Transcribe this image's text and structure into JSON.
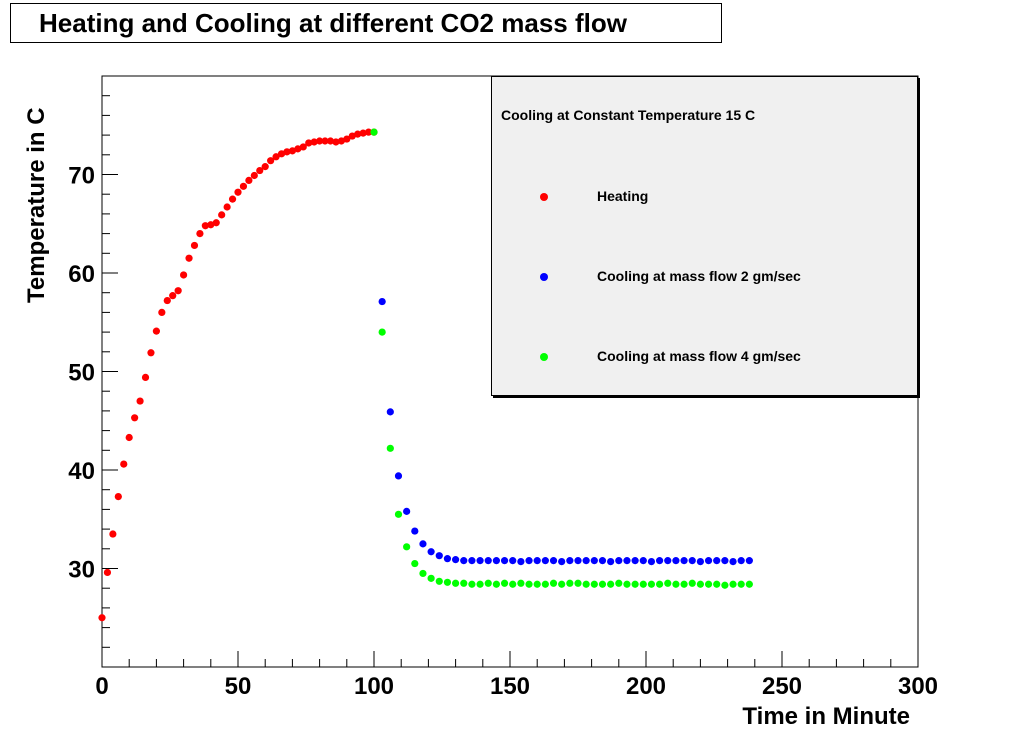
{
  "chart_data": {
    "type": "scatter",
    "title": "Heating and Cooling at different CO2 mass flow",
    "xlabel": "Time in Minute",
    "ylabel": "Temperature in C",
    "xlim": [
      0,
      300
    ],
    "ylim": [
      20,
      80
    ],
    "x_ticks": [
      0,
      50,
      100,
      150,
      200,
      250,
      300
    ],
    "y_ticks": [
      30,
      40,
      50,
      60,
      70
    ],
    "grid": false,
    "legend": {
      "header": "Cooling at Constant Temperature 15 C",
      "placement": "top-right"
    },
    "series": [
      {
        "name": "Heating",
        "color": "#ff0000",
        "x": [
          0,
          2,
          4,
          6,
          8,
          10,
          12,
          14,
          16,
          18,
          20,
          22,
          24,
          26,
          28,
          30,
          32,
          34,
          36,
          38,
          40,
          42,
          44,
          46,
          48,
          50,
          52,
          54,
          56,
          58,
          60,
          62,
          64,
          66,
          68,
          70,
          72,
          74,
          76,
          78,
          80,
          82,
          84,
          86,
          88,
          90,
          92,
          94,
          96,
          98,
          100
        ],
        "y": [
          25,
          29.6,
          33.5,
          37.3,
          40.6,
          43.3,
          45.3,
          47,
          49.4,
          51.9,
          54.1,
          56,
          57.2,
          57.7,
          58.2,
          59.8,
          61.5,
          62.8,
          64,
          64.8,
          64.9,
          65.1,
          65.9,
          66.7,
          67.5,
          68.2,
          68.8,
          69.4,
          69.9,
          70.4,
          70.8,
          71.4,
          71.8,
          72.1,
          72.3,
          72.4,
          72.6,
          72.8,
          73.2,
          73.3,
          73.4,
          73.4,
          73.4,
          73.3,
          73.4,
          73.6,
          73.9,
          74.1,
          74.2,
          74.3,
          74.3
        ]
      },
      {
        "name": "Cooling at mass flow 2 gm/sec",
        "color": "#0000ff",
        "x": [
          103,
          106,
          109,
          112,
          115,
          118,
          121,
          124,
          127,
          130,
          133,
          136,
          139,
          142,
          145,
          148,
          151,
          154,
          157,
          160,
          163,
          166,
          169,
          172,
          175,
          178,
          181,
          184,
          187,
          190,
          193,
          196,
          199,
          202,
          205,
          208,
          211,
          214,
          217,
          220,
          223,
          226,
          229,
          232,
          235,
          238
        ],
        "y": [
          57.1,
          45.9,
          39.4,
          35.8,
          33.8,
          32.5,
          31.7,
          31.3,
          31,
          30.9,
          30.8,
          30.8,
          30.8,
          30.8,
          30.8,
          30.8,
          30.8,
          30.7,
          30.8,
          30.8,
          30.8,
          30.8,
          30.7,
          30.8,
          30.8,
          30.8,
          30.8,
          30.8,
          30.7,
          30.8,
          30.8,
          30.8,
          30.8,
          30.7,
          30.8,
          30.8,
          30.8,
          30.8,
          30.8,
          30.7,
          30.8,
          30.8,
          30.8,
          30.7,
          30.8,
          30.8
        ]
      },
      {
        "name": "Cooling at mass flow 4 gm/sec",
        "color": "#00ff00",
        "x": [
          100,
          103,
          106,
          109,
          112,
          115,
          118,
          121,
          124,
          127,
          130,
          133,
          136,
          139,
          142,
          145,
          148,
          151,
          154,
          157,
          160,
          163,
          166,
          169,
          172,
          175,
          178,
          181,
          184,
          187,
          190,
          193,
          196,
          199,
          202,
          205,
          208,
          211,
          214,
          217,
          220,
          223,
          226,
          229,
          232,
          235,
          238
        ],
        "y": [
          74.3,
          54,
          42.2,
          35.5,
          32.2,
          30.5,
          29.5,
          29,
          28.7,
          28.6,
          28.5,
          28.5,
          28.4,
          28.4,
          28.5,
          28.4,
          28.5,
          28.4,
          28.5,
          28.4,
          28.4,
          28.4,
          28.5,
          28.4,
          28.5,
          28.5,
          28.4,
          28.4,
          28.4,
          28.4,
          28.5,
          28.4,
          28.4,
          28.4,
          28.4,
          28.4,
          28.5,
          28.4,
          28.4,
          28.5,
          28.4,
          28.4,
          28.4,
          28.3,
          28.4,
          28.4,
          28.4
        ]
      }
    ]
  }
}
